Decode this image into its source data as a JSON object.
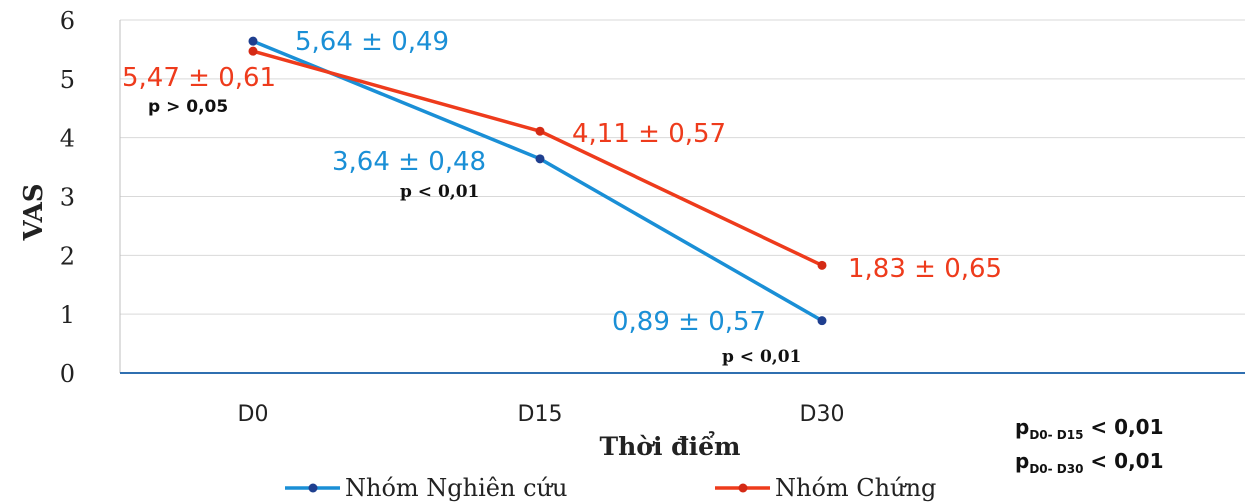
{
  "chart_data": {
    "type": "line",
    "title": "",
    "xlabel": "Thời điểm",
    "ylabel": "VAS",
    "categories": [
      "D0",
      "D15",
      "D30"
    ],
    "ylim": [
      0,
      6
    ],
    "yticks": [
      "0",
      "1",
      "2",
      "3",
      "4",
      "5",
      "6"
    ],
    "grid": true,
    "legend_position": "bottom",
    "series": [
      {
        "name": "Nhóm Nghiên cứu",
        "color": "#1a8fd6",
        "values": [
          5.64,
          3.64,
          0.89
        ],
        "labels": [
          "5,64 ± 0,49",
          "3,64 ± 0,48",
          "0,89 ± 0,57"
        ]
      },
      {
        "name": "Nhóm Chứng",
        "color": "#ee3b1c",
        "values": [
          5.47,
          4.11,
          1.83
        ],
        "labels": [
          "5,47 ± 0,61",
          "4,11 ± 0,57",
          "1,83 ± 0,65"
        ]
      }
    ],
    "annotations": [
      "p > 0,05",
      "p < 0,01",
      "p < 0,01"
    ],
    "footnotes": [
      {
        "main": "p",
        "sub": "D0- D15",
        "rest": " < 0,01"
      },
      {
        "main": "p",
        "sub": "D0- D30",
        "rest": " < 0,01"
      }
    ]
  }
}
